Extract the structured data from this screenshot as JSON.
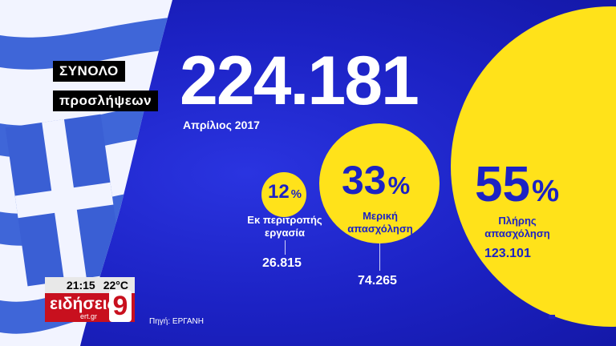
{
  "headline": {
    "label_line1": "ΣΥΝΟΛΟ",
    "label_line2": "προσλήψεων",
    "total": "224.181",
    "period": "Απρίλιος 2017"
  },
  "breakdown": [
    {
      "percent": "12",
      "sign": "%",
      "caption": "Εκ περιτροπής εργασία",
      "value": "26.815"
    },
    {
      "percent": "33",
      "sign": "%",
      "caption": "Μερική απασχόληση",
      "value": "74.265"
    },
    {
      "percent": "55",
      "sign": "%",
      "caption": "Πλήρης απασχόληση",
      "value": "123.101"
    }
  ],
  "source": "Πηγή: ΕΡΓΑΝΗ",
  "ticker": {
    "time": "21:15",
    "temperature": "22°C",
    "brand": "ειδήσεις",
    "brand_sub": "ert.gr",
    "channel": "9"
  },
  "colors": {
    "background_blue": "#1c22c4",
    "circle_yellow": "#ffe21a",
    "label_black": "#000000",
    "brand_red": "#c8101e"
  }
}
